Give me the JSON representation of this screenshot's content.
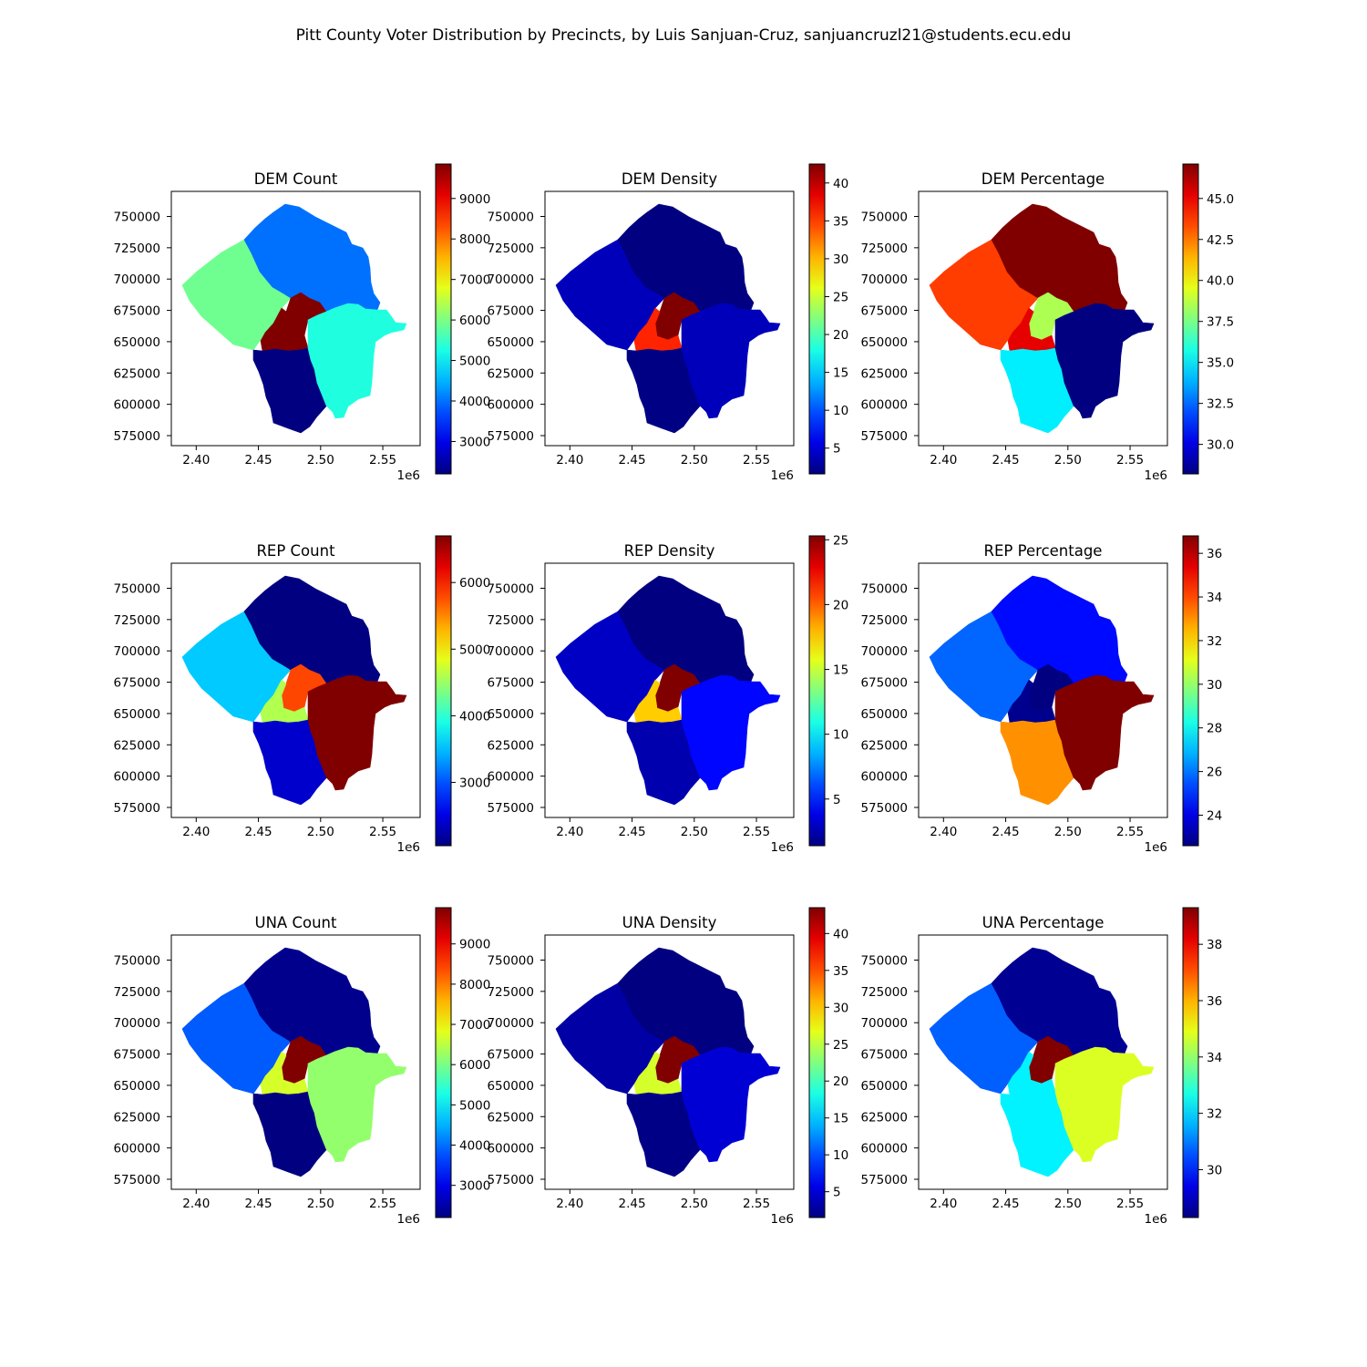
{
  "figure": {
    "title": "Pitt County Voter Distribution by Precincts, by Luis Sanjuan-Cruz, sanjuancruzl21@students.ecu.edu"
  },
  "colormap": "jet",
  "map_axes": {
    "x_ticks": [
      "2.40",
      "2.45",
      "2.50",
      "2.55"
    ],
    "x_tick_values": [
      2400000,
      2450000,
      2500000,
      2550000
    ],
    "x_offset_label": "1e6",
    "y_ticks": [
      "750000",
      "725000",
      "700000",
      "675000",
      "650000",
      "625000",
      "600000",
      "575000"
    ],
    "y_tick_values": [
      750000,
      725000,
      700000,
      675000,
      650000,
      625000,
      600000,
      575000
    ],
    "xlim": [
      2380000,
      2580000
    ],
    "ylim": [
      567000,
      770000
    ]
  },
  "regions": [
    "northwest",
    "north",
    "center_north",
    "center_south",
    "south",
    "east"
  ],
  "chart_data": [
    {
      "type": "choropleth",
      "title": "DEM Count",
      "vmin": 2200,
      "vmax": 9850,
      "cbar_ticks": [
        "9000",
        "8000",
        "7000",
        "6000",
        "5000",
        "4000",
        "3000"
      ],
      "cbar_tick_values": [
        9000,
        8000,
        7000,
        6000,
        5000,
        4000,
        3000
      ],
      "region_values": {
        "northwest": 5900,
        "north": 4000,
        "center_north": 9850,
        "center_south": 9850,
        "south": 2200,
        "east": 5300
      }
    },
    {
      "type": "choropleth",
      "title": "DEM Density",
      "vmin": 1.6,
      "vmax": 42.5,
      "cbar_ticks": [
        "40",
        "35",
        "30",
        "25",
        "20",
        "15",
        "10",
        "5"
      ],
      "cbar_tick_values": [
        40,
        35,
        30,
        25,
        20,
        15,
        10,
        5
      ],
      "region_values": {
        "northwest": 4,
        "north": 1.6,
        "center_north": 42.5,
        "center_south": 36,
        "south": 1.8,
        "east": 4
      }
    },
    {
      "type": "choropleth",
      "title": "DEM Percentage",
      "vmin": 28.2,
      "vmax": 47.1,
      "cbar_ticks": [
        "45.0",
        "42.5",
        "40.0",
        "37.5",
        "35.0",
        "32.5",
        "30.0"
      ],
      "cbar_tick_values": [
        45.0,
        42.5,
        40.0,
        37.5,
        35.0,
        32.5,
        30.0
      ],
      "region_values": {
        "northwest": 43.6,
        "north": 47.1,
        "center_north": 38.5,
        "center_south": 45.2,
        "south": 35,
        "east": 28.2
      }
    },
    {
      "type": "choropleth",
      "title": "REP Count",
      "vmin": 2050,
      "vmax": 6700,
      "cbar_ticks": [
        "6000",
        "5000",
        "4000",
        "3000"
      ],
      "cbar_tick_values": [
        6000,
        5000,
        4000,
        3000
      ],
      "region_values": {
        "northwest": 3550,
        "north": 2050,
        "center_north": 5800,
        "center_south": 4600,
        "south": 2400,
        "east": 6700
      }
    },
    {
      "type": "choropleth",
      "title": "REP Density",
      "vmin": 1.4,
      "vmax": 25.3,
      "cbar_ticks": [
        "25",
        "20",
        "15",
        "10",
        "5"
      ],
      "cbar_tick_values": [
        25,
        20,
        15,
        10,
        5
      ],
      "region_values": {
        "northwest": 3,
        "north": 1.4,
        "center_north": 25.3,
        "center_south": 17.5,
        "south": 2.5,
        "east": 4.5
      }
    },
    {
      "type": "choropleth",
      "title": "REP Percentage",
      "vmin": 22.6,
      "vmax": 36.8,
      "cbar_ticks": [
        "36",
        "34",
        "32",
        "30",
        "28",
        "26",
        "24"
      ],
      "cbar_tick_values": [
        36,
        34,
        32,
        30,
        28,
        26,
        24
      ],
      "region_values": {
        "northwest": 25.8,
        "north": 24.5,
        "center_north": 22.6,
        "center_south": 22.8,
        "south": 33,
        "east": 36.8
      }
    },
    {
      "type": "choropleth",
      "title": "UNA Count",
      "vmin": 2200,
      "vmax": 9900,
      "cbar_ticks": [
        "9000",
        "8000",
        "7000",
        "6000",
        "5000",
        "4000",
        "3000"
      ],
      "cbar_tick_values": [
        9000,
        8000,
        7000,
        6000,
        5000,
        4000,
        3000
      ],
      "region_values": {
        "northwest": 3850,
        "north": 2300,
        "center_north": 9900,
        "center_south": 6700,
        "south": 2200,
        "east": 6200
      }
    },
    {
      "type": "choropleth",
      "title": "UNA Density",
      "vmin": 1.5,
      "vmax": 43.5,
      "cbar_ticks": [
        "40",
        "35",
        "30",
        "25",
        "20",
        "15",
        "10",
        "5"
      ],
      "cbar_tick_values": [
        40,
        35,
        30,
        25,
        20,
        15,
        10,
        5
      ],
      "region_values": {
        "northwest": 3,
        "north": 1.5,
        "center_north": 43.5,
        "center_south": 26,
        "south": 1.8,
        "east": 5
      }
    },
    {
      "type": "choropleth",
      "title": "UNA Percentage",
      "vmin": 28.3,
      "vmax": 39.3,
      "cbar_ticks": [
        "38",
        "36",
        "34",
        "32",
        "30"
      ],
      "cbar_tick_values": [
        38,
        36,
        34,
        32,
        30
      ],
      "region_values": {
        "northwest": 30.7,
        "north": 28.5,
        "center_north": 39.3,
        "center_south": 32.3,
        "south": 32.3,
        "east": 34.8
      }
    }
  ]
}
